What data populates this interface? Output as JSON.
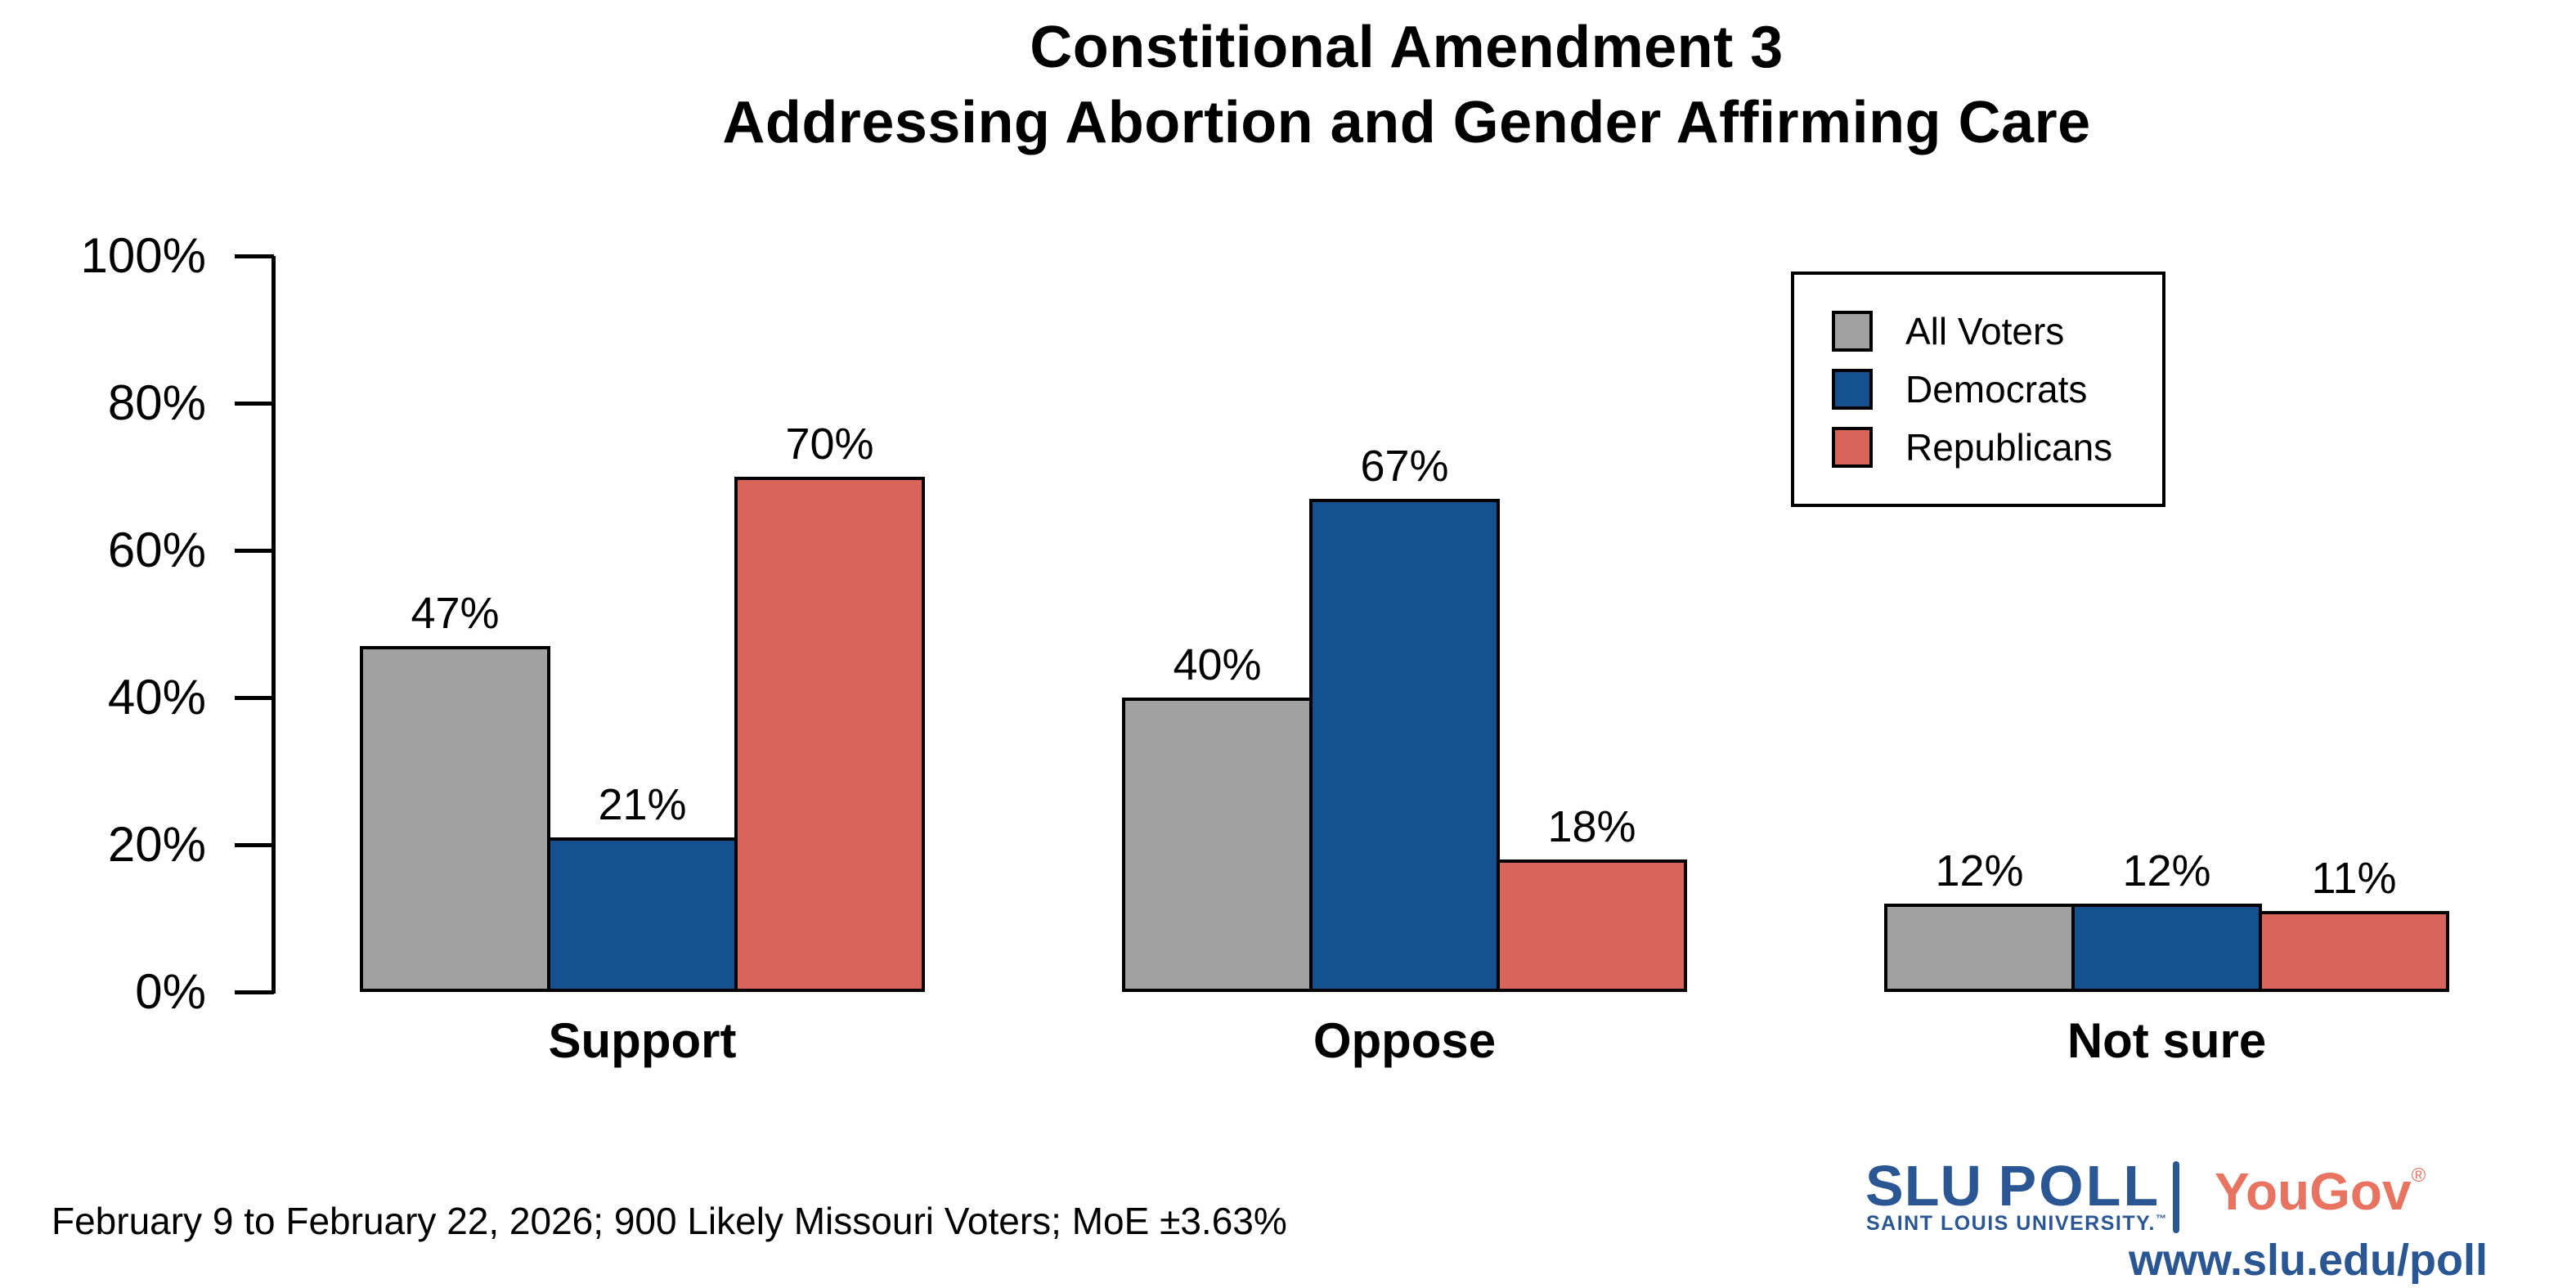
{
  "title": {
    "line1": "Constitional Amendment 3",
    "line2": "Addressing Abortion and Gender Affirming Care"
  },
  "chart_data": {
    "type": "bar",
    "categories": [
      "Support",
      "Oppose",
      "Not sure"
    ],
    "series": [
      {
        "name": "All Voters",
        "color": "#A1A1A1",
        "values": [
          47,
          40,
          12
        ]
      },
      {
        "name": "Democrats",
        "color": "#14508E",
        "values": [
          21,
          67,
          12
        ]
      },
      {
        "name": "Republicans",
        "color": "#D9655A",
        "values": [
          70,
          18,
          11
        ]
      }
    ],
    "value_suffix": "%",
    "bar_labels": true,
    "ylabel": "",
    "ylim": [
      0,
      100
    ],
    "yticks": [
      "0%",
      "20%",
      "40%",
      "60%",
      "80%",
      "100%"
    ],
    "grid": false,
    "legend_position": "top-right",
    "bar_outline_color": "#000000"
  },
  "caption": "February 9 to February 22, 2026; 900 Likely Missouri Voters; MoE ±3.63%",
  "branding": {
    "slu": "SLU",
    "poll": "POLL",
    "university": "SAINT LOUIS UNIVERSITY.",
    "trademark": "™",
    "yougov": "YouGov",
    "registered": "®",
    "url": "www.slu.edu/poll",
    "slu_blue": "#2A5694",
    "yougov_coral": "#E97361"
  }
}
